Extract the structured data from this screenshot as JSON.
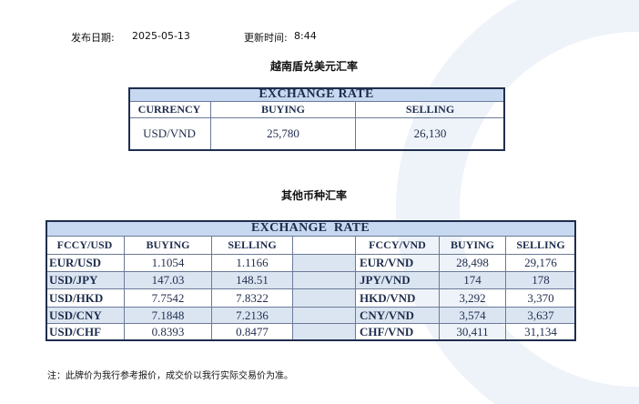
{
  "header": {
    "date_label": "发布日期:",
    "date": "2025-05-13",
    "time_label": "更新时间:",
    "time": "8:44"
  },
  "vnd_usd": {
    "title": "越南盾兑美元汇率",
    "table_title": "EXCHANGE RATE",
    "columns": [
      "CURRENCY",
      "BUYING",
      "SELLING"
    ],
    "rows": [
      [
        "USD/VND",
        "25,780",
        "26,130"
      ]
    ]
  },
  "others": {
    "title": "其他币种汇率",
    "table_title": "EXCHANGE  RATE",
    "columns": [
      "FCCY/USD",
      "BUYING",
      "SELLING",
      "FCCY/VND",
      "BUYING",
      "SELLING"
    ],
    "rows": [
      [
        "EUR/USD",
        "1.1054",
        "1.1166",
        "EUR/VND",
        "28,498",
        "29,176"
      ],
      [
        "USD/JPY",
        "147.03",
        "148.51",
        "JPY/VND",
        "174",
        "178"
      ],
      [
        "USD/HKD",
        "7.7542",
        "7.8322",
        "HKD/VND",
        "3,292",
        "3,370"
      ],
      [
        "USD/CNY",
        "7.1848",
        "7.2136",
        "CNY/VND",
        "3,574",
        "3,637"
      ],
      [
        "USD/CHF",
        "0.8393",
        "0.8477",
        "CHF/VND",
        "30,411",
        "31,134"
      ]
    ]
  },
  "note": "注：此牌价为我行参考报价，成交价以我行实际交易价为准。"
}
